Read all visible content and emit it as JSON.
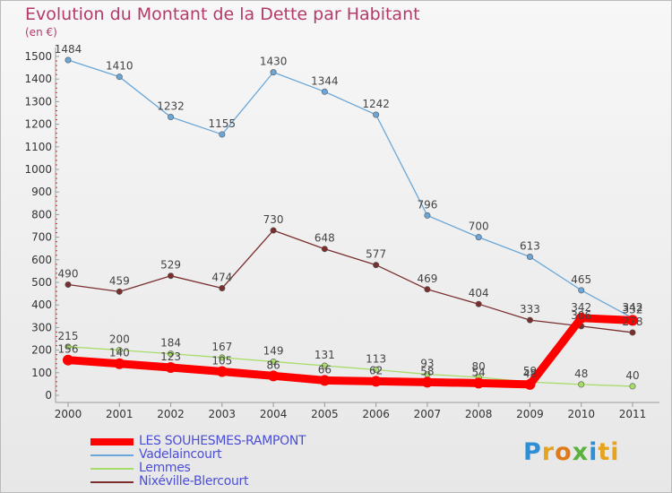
{
  "title": "Evolution du Montant de la Dette par Habitant",
  "unit": "(en €)",
  "logo": {
    "text": "Proxiti"
  },
  "chart_data": {
    "type": "line",
    "x": [
      "2000",
      "2001",
      "2002",
      "2003",
      "2004",
      "2005",
      "2006",
      "2007",
      "2008",
      "2009",
      "2010",
      "2011"
    ],
    "ylim": [
      0,
      1500
    ],
    "yticks": [
      0,
      100,
      200,
      300,
      400,
      500,
      600,
      700,
      800,
      900,
      1000,
      1100,
      1200,
      1300,
      1400,
      1500
    ],
    "grid": false,
    "legend_position": "bottom-left",
    "series": [
      {
        "name": "LES SOUHESMES-RAMPONT",
        "color": "#ff0000",
        "values": [
          156,
          140,
          123,
          105,
          86,
          66,
          62,
          58,
          54,
          48,
          342,
          332
        ],
        "labels": [
          "156",
          "140",
          "123",
          "105",
          "86",
          "66",
          "62",
          "58",
          "54",
          "48",
          "342",
          "332"
        ]
      },
      {
        "name": "Vadelaincourt",
        "color": "#6aa7d8",
        "values": [
          1484,
          1410,
          1232,
          1155,
          1430,
          1344,
          1242,
          796,
          700,
          613,
          465,
          342
        ],
        "labels": [
          "1484",
          "1410",
          "1232",
          "1155",
          "1430",
          "1344",
          "1242",
          "796",
          "700",
          "613",
          "465",
          "342"
        ]
      },
      {
        "name": "Lemmes",
        "color": "#a8dc6a",
        "values": [
          215,
          200,
          184,
          167,
          149,
          131,
          113,
          93,
          80,
          59,
          48,
          40
        ],
        "labels": [
          "215",
          "200",
          "184",
          "167",
          "149",
          "131",
          "113",
          "93",
          "80",
          "59",
          "48",
          "40"
        ]
      },
      {
        "name": "Nixéville-Blercourt",
        "color": "#7a2e2e",
        "values": [
          490,
          459,
          529,
          474,
          730,
          648,
          577,
          469,
          404,
          333,
          306,
          278
        ],
        "labels": [
          "490",
          "459",
          "529",
          "474",
          "730",
          "648",
          "577",
          "469",
          "404",
          "333",
          "306",
          "278"
        ]
      }
    ]
  }
}
